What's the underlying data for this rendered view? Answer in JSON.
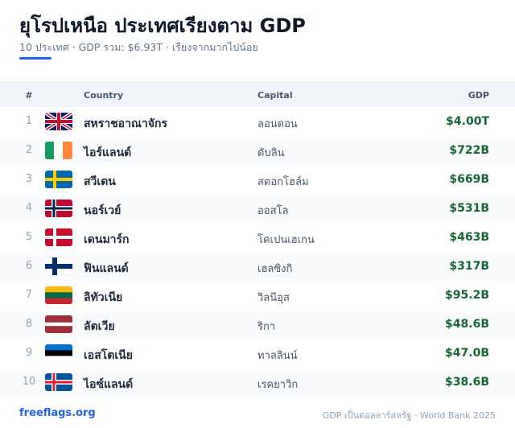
{
  "header": {
    "title": "ยุโรปเหนือ ประเทศเรียงตาม GDP",
    "subtitle": "10 ประเทศ · GDP รวม: $6.93T · เรียงจากมากไปน้อย"
  },
  "table": {
    "columns": [
      "#",
      "Country",
      "Capital",
      "GDP"
    ],
    "rows": [
      [
        1,
        "สหราชอาณาจักร",
        "ลอนดอน",
        "$4.00T"
      ],
      [
        2,
        "ไอร์แลนด์",
        "ดับลิน",
        "$722B"
      ],
      [
        3,
        "สวีเดน",
        "สตอกโฮล์ม",
        "$669B"
      ],
      [
        4,
        "นอร์เวย์",
        "ออสโล",
        "$531B"
      ],
      [
        5,
        "เดนมาร์ก",
        "โคเปนเฮเกน",
        "$463B"
      ],
      [
        6,
        "ฟินแลนด์",
        "เฮลซิงกิ",
        "$317B"
      ],
      [
        7,
        "ลิทัวเนีย",
        "วิลนีอุส",
        "$95.2B"
      ],
      [
        8,
        "ลัตเวีย",
        "ริกา",
        "$48.6B"
      ],
      [
        9,
        "เอสโตเนีย",
        "ทาลลินน์",
        "$47.0B"
      ],
      [
        10,
        "ไอซ์แลนด์",
        "เรคยาวิก",
        "$38.6B"
      ]
    ]
  },
  "footer": {
    "source_link": "freeflags.org",
    "note": "GDP เป็นดอลลาร์สหรัฐ · World Bank 2025"
  }
}
